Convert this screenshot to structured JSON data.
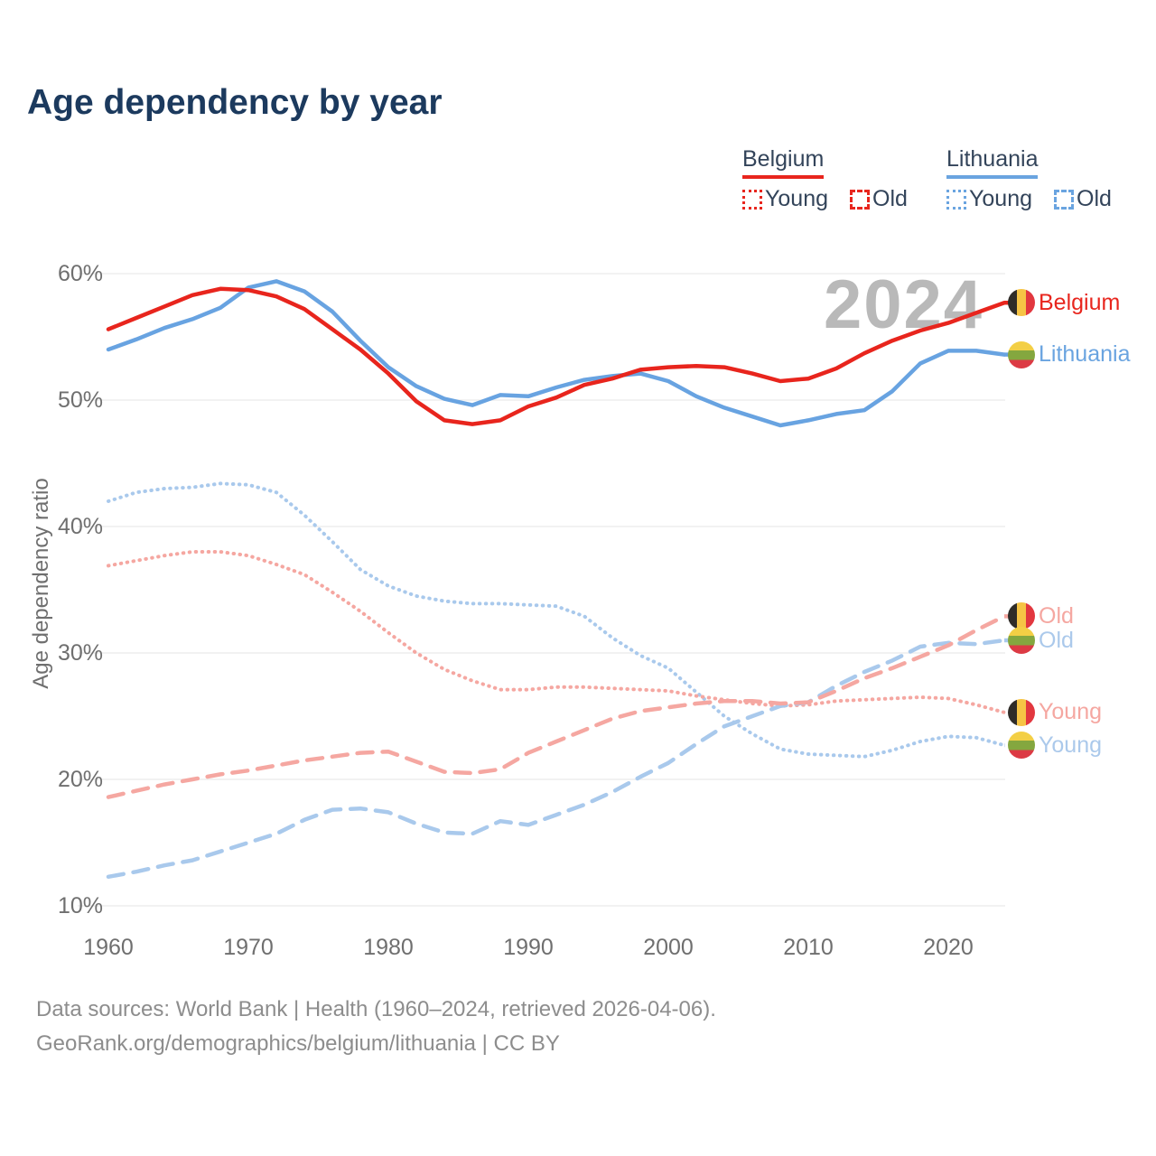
{
  "title": "Age dependency by year",
  "watermark": "2024",
  "legend": {
    "groups": [
      {
        "country": "Belgium",
        "color": "#e8251d",
        "items": [
          {
            "label": "Young",
            "style": "dotted"
          },
          {
            "label": "Old",
            "style": "dashed"
          }
        ]
      },
      {
        "country": "Lithuania",
        "color": "#6aa4e0",
        "items": [
          {
            "label": "Young",
            "style": "dotted"
          },
          {
            "label": "Old",
            "style": "dashed"
          }
        ]
      }
    ]
  },
  "y_axis": {
    "label": "Age dependency ratio",
    "ticks": [
      {
        "label": "60%",
        "value": 60
      },
      {
        "label": "50%",
        "value": 50
      },
      {
        "label": "40%",
        "value": 40
      },
      {
        "label": "30%",
        "value": 30
      },
      {
        "label": "20%",
        "value": 20
      },
      {
        "label": "10%",
        "value": 10
      }
    ]
  },
  "x_axis": {
    "ticks": [
      {
        "label": "1960",
        "value": 1960
      },
      {
        "label": "1970",
        "value": 1970
      },
      {
        "label": "1980",
        "value": 1980
      },
      {
        "label": "1990",
        "value": 1990
      },
      {
        "label": "2000",
        "value": 2000
      },
      {
        "label": "2010",
        "value": 2010
      },
      {
        "label": "2020",
        "value": 2020
      }
    ]
  },
  "end_labels": [
    {
      "series": "belgium-total",
      "label": "Belgium",
      "color": "#e8251d",
      "flag": "be"
    },
    {
      "series": "lithuania-total",
      "label": "Lithuania",
      "color": "#6aa4e0",
      "flag": "lt"
    },
    {
      "series": "belgium-old",
      "label": "Old",
      "color": "#f5a7a1",
      "flag": "be"
    },
    {
      "series": "lithuania-old",
      "label": "Old",
      "color": "#abc9eb",
      "flag": "lt"
    },
    {
      "series": "belgium-young",
      "label": "Young",
      "color": "#f5a7a1",
      "flag": "be"
    },
    {
      "series": "lithuania-young",
      "label": "Young",
      "color": "#abc9eb",
      "flag": "lt"
    }
  ],
  "footer": {
    "line1": "Data sources: World Bank | Health (1960–2024, retrieved 2026-04-06).",
    "line2": "GeoRank.org/demographics/belgium/lithuania | CC BY"
  },
  "chart_data": {
    "type": "line",
    "title": "Age dependency by year",
    "ylabel": "Age dependency ratio",
    "xlabel": "",
    "x_range": [
      1960,
      2024
    ],
    "y_range": [
      10,
      60
    ],
    "grid": "horizontal",
    "legend_position": "top-right",
    "x": [
      1960,
      1962,
      1964,
      1966,
      1968,
      1970,
      1972,
      1974,
      1976,
      1978,
      1980,
      1982,
      1984,
      1986,
      1988,
      1990,
      1992,
      1994,
      1996,
      1998,
      2000,
      2002,
      2004,
      2006,
      2008,
      2010,
      2012,
      2014,
      2016,
      2018,
      2020,
      2022,
      2024
    ],
    "series": [
      {
        "key": "lithuania-young",
        "name": "Lithuania Young",
        "color": "#a9c9ec",
        "style": "dotted",
        "values": [
          42.0,
          42.7,
          43.0,
          43.1,
          43.4,
          43.3,
          42.7,
          40.9,
          38.8,
          36.6,
          35.3,
          34.5,
          34.1,
          33.9,
          33.9,
          33.8,
          33.7,
          32.9,
          31.2,
          29.8,
          28.8,
          26.9,
          25.0,
          23.6,
          22.4,
          22.0,
          21.9,
          21.8,
          22.3,
          23.0,
          23.4,
          23.3,
          22.7
        ]
      },
      {
        "key": "belgium-young",
        "name": "Belgium Young",
        "color": "#f5a7a1",
        "style": "dotted",
        "values": [
          36.9,
          37.3,
          37.7,
          38.0,
          38.0,
          37.7,
          37.0,
          36.2,
          34.8,
          33.3,
          31.6,
          30.0,
          28.7,
          27.8,
          27.1,
          27.1,
          27.3,
          27.3,
          27.2,
          27.1,
          27.0,
          26.6,
          26.3,
          26.0,
          25.8,
          25.9,
          26.2,
          26.3,
          26.4,
          26.5,
          26.4,
          25.9,
          25.3
        ]
      },
      {
        "key": "lithuania-old",
        "name": "Lithuania Old",
        "color": "#a9c9ec",
        "style": "dashed",
        "values": [
          12.3,
          12.7,
          13.2,
          13.6,
          14.3,
          15.0,
          15.7,
          16.8,
          17.6,
          17.7,
          17.4,
          16.5,
          15.8,
          15.7,
          16.7,
          16.4,
          17.2,
          18.0,
          19.0,
          20.2,
          21.3,
          22.8,
          24.2,
          25.0,
          25.8,
          26.1,
          27.4,
          28.5,
          29.4,
          30.5,
          30.8,
          30.7,
          31.0
        ]
      },
      {
        "key": "belgium-old",
        "name": "Belgium Old",
        "color": "#f5a7a1",
        "style": "dashed",
        "values": [
          18.6,
          19.1,
          19.6,
          20.0,
          20.4,
          20.7,
          21.1,
          21.5,
          21.8,
          22.1,
          22.2,
          21.4,
          20.6,
          20.5,
          20.8,
          22.1,
          23.0,
          23.9,
          24.8,
          25.4,
          25.7,
          26.0,
          26.2,
          26.2,
          26.0,
          26.1,
          27.0,
          28.0,
          28.8,
          29.7,
          30.6,
          31.8,
          32.9
        ]
      },
      {
        "key": "lithuania-total",
        "name": "Lithuania",
        "color": "#68a3e1",
        "style": "solid",
        "values": [
          54.0,
          54.8,
          55.7,
          56.4,
          57.3,
          58.9,
          59.4,
          58.6,
          57.0,
          54.7,
          52.6,
          51.1,
          50.1,
          49.6,
          50.4,
          50.3,
          51.0,
          51.6,
          51.9,
          52.1,
          51.5,
          50.3,
          49.4,
          48.7,
          48.0,
          48.4,
          48.9,
          49.2,
          50.7,
          52.9,
          53.9,
          53.9,
          53.6
        ]
      },
      {
        "key": "belgium-total",
        "name": "Belgium",
        "color": "#e8251d",
        "style": "solid",
        "values": [
          55.6,
          56.5,
          57.4,
          58.3,
          58.8,
          58.7,
          58.2,
          57.2,
          55.6,
          54.0,
          52.1,
          49.9,
          48.4,
          48.1,
          48.4,
          49.5,
          50.2,
          51.2,
          51.7,
          52.4,
          52.6,
          52.7,
          52.6,
          52.1,
          51.5,
          51.7,
          52.5,
          53.7,
          54.7,
          55.5,
          56.1,
          56.9,
          57.7
        ]
      }
    ]
  }
}
